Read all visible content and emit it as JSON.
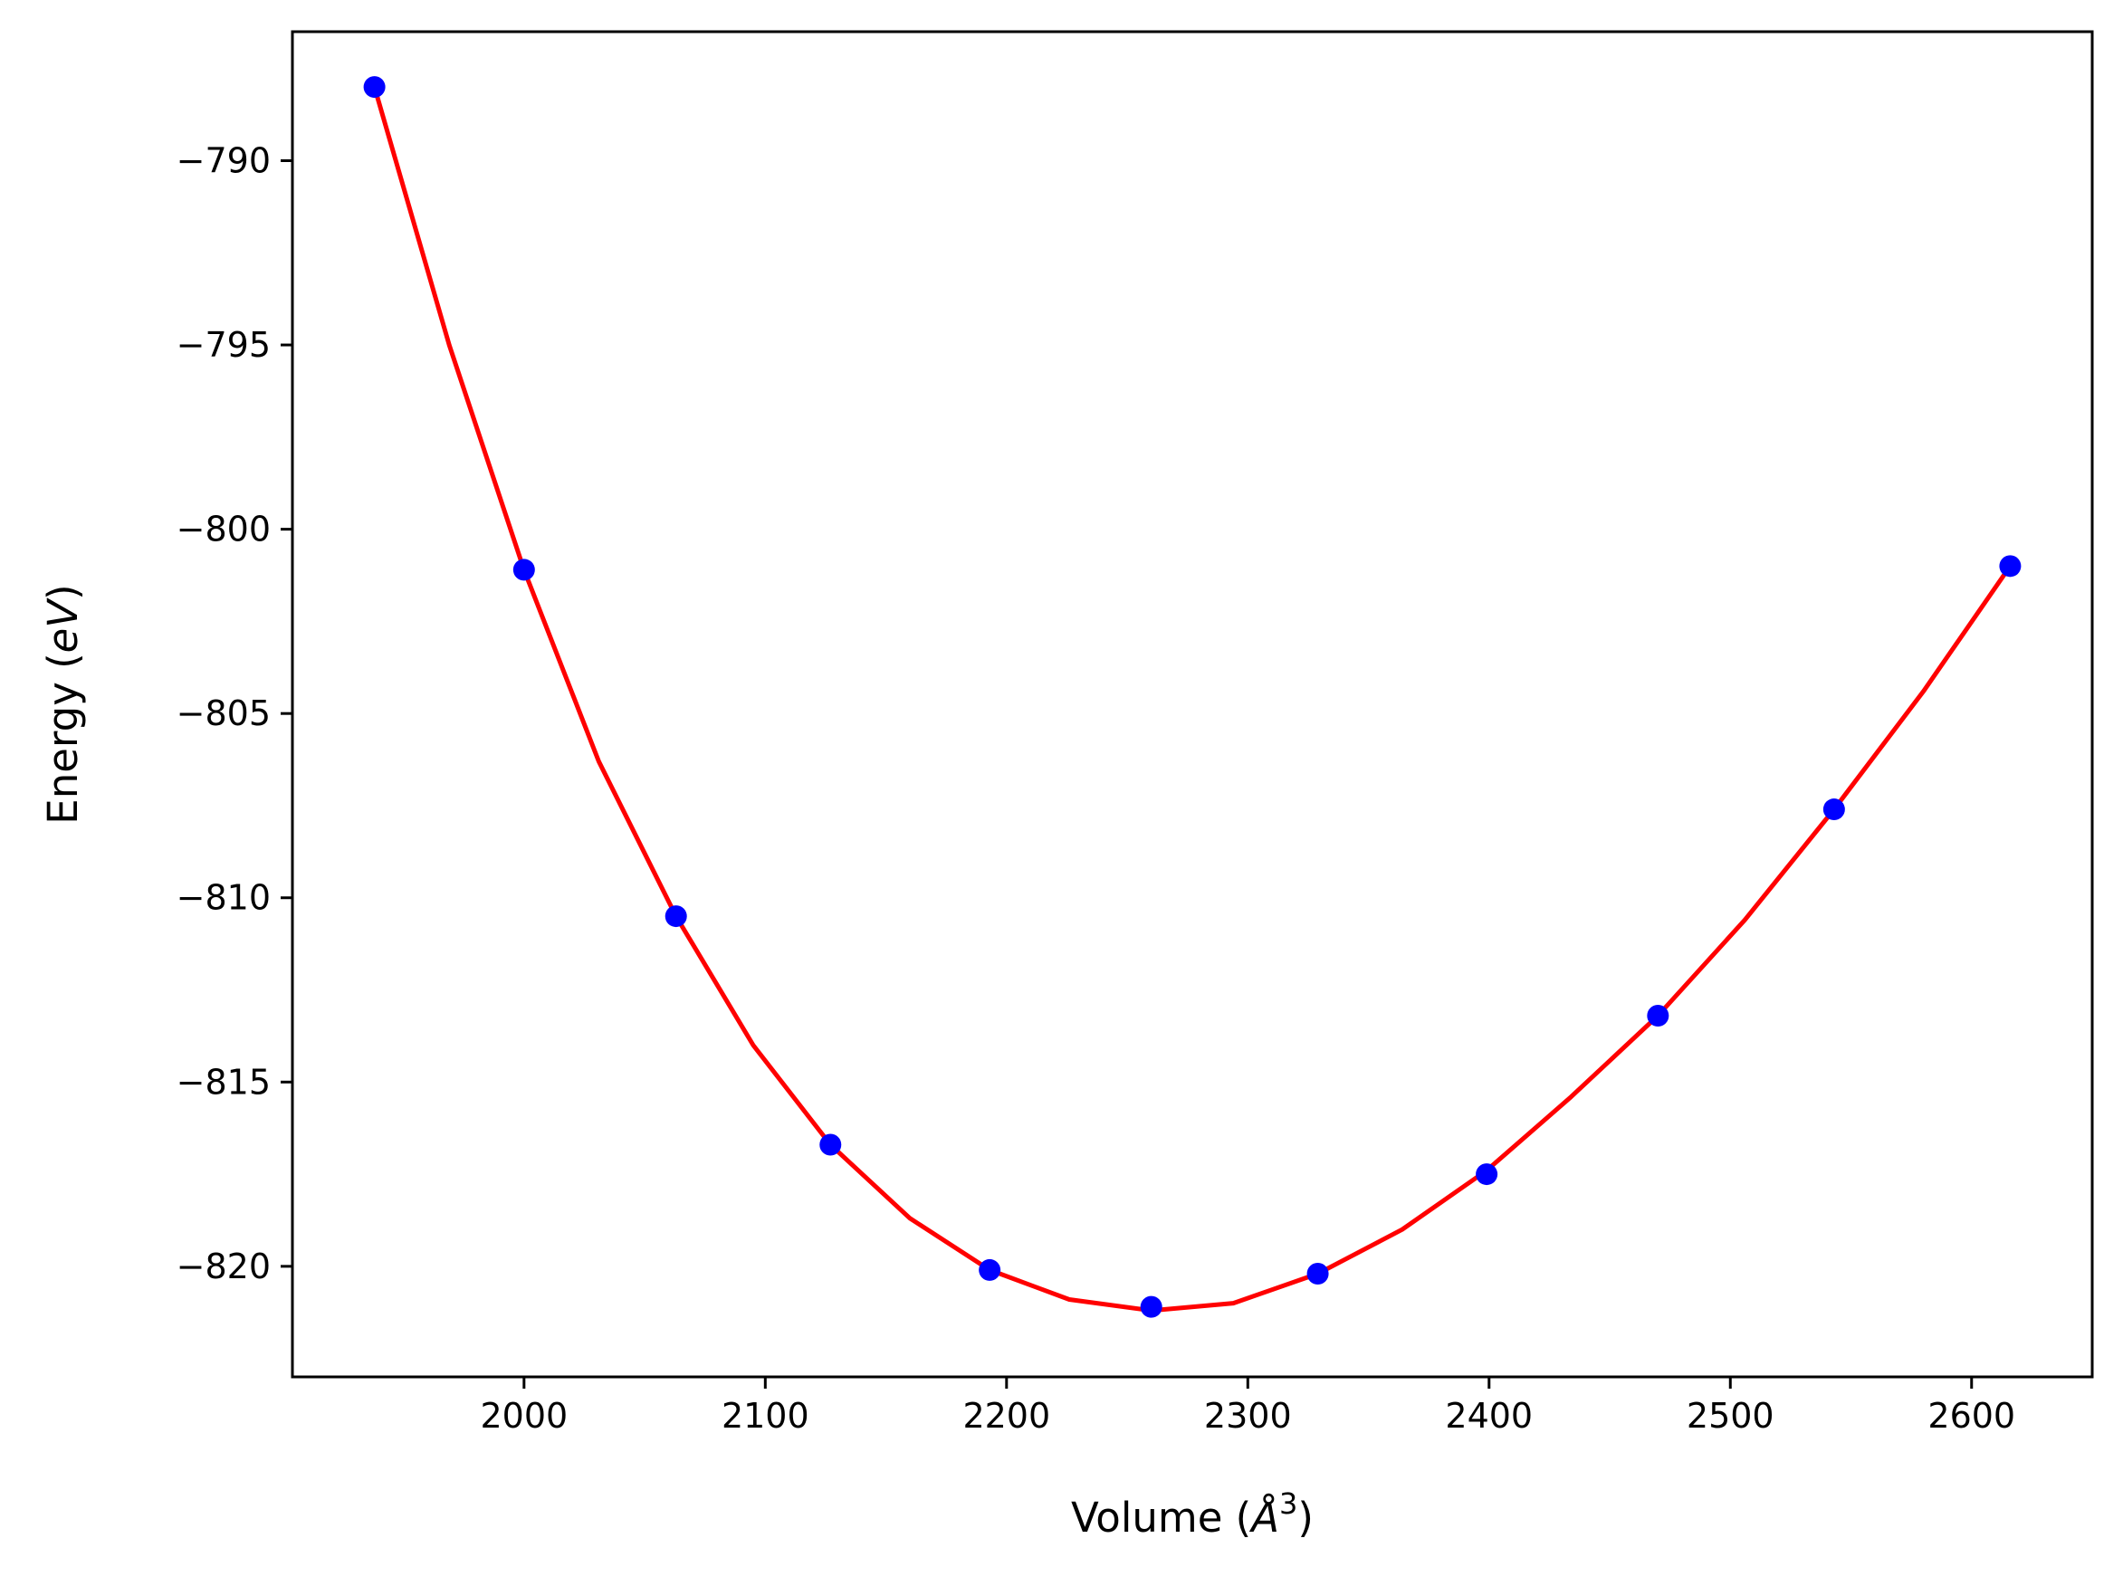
{
  "chart_data": {
    "type": "line",
    "xlabel_prefix": "Volume (",
    "xlabel_unit": "Å",
    "xlabel_exp": "3",
    "xlabel_suffix": ")",
    "ylabel_prefix": "Energy (",
    "ylabel_unit": "eV",
    "ylabel_suffix": ")",
    "xlim": [
      1904,
      2650
    ],
    "ylim": [
      -823.0,
      -786.5
    ],
    "xticks": [
      2000,
      2100,
      2200,
      2300,
      2400,
      2500,
      2600
    ],
    "xtick_labels": [
      "2000",
      "2100",
      "2200",
      "2300",
      "2400",
      "2500",
      "2600"
    ],
    "yticks": [
      -790,
      -795,
      -800,
      -805,
      -810,
      -815,
      -820
    ],
    "ytick_labels": [
      "−790",
      "−795",
      "−800",
      "−805",
      "−810",
      "−815",
      "−820"
    ],
    "grid": false,
    "series": [
      {
        "kind": "points",
        "color": "#0000ff",
        "x": [
          1938,
          2000,
          2063,
          2127,
          2193,
          2260,
          2329,
          2399,
          2470,
          2543,
          2616
        ],
        "y": [
          -788.0,
          -801.1,
          -810.5,
          -816.7,
          -820.1,
          -821.1,
          -820.2,
          -817.5,
          -813.2,
          -807.6,
          -801.0
        ]
      },
      {
        "kind": "curve",
        "color": "#ff0000",
        "x": [
          1938,
          1969,
          2000,
          2031,
          2063,
          2095,
          2127,
          2160,
          2193,
          2226,
          2260,
          2294,
          2329,
          2364,
          2399,
          2434,
          2470,
          2506,
          2543,
          2580,
          2616
        ],
        "y": [
          -788.0,
          -795.0,
          -801.1,
          -806.3,
          -810.5,
          -814.0,
          -816.7,
          -818.7,
          -820.1,
          -820.9,
          -821.2,
          -821.0,
          -820.2,
          -819.0,
          -817.4,
          -815.4,
          -813.2,
          -810.6,
          -807.6,
          -804.4,
          -801.0
        ]
      }
    ]
  }
}
